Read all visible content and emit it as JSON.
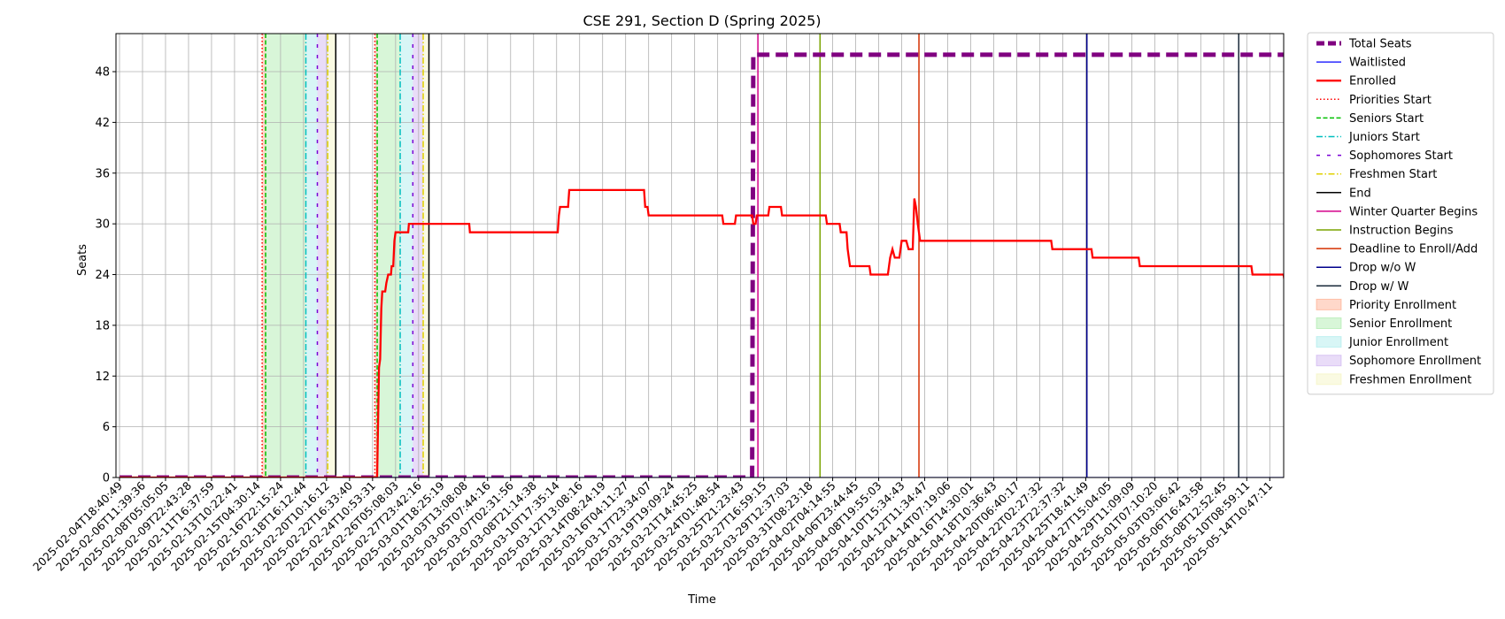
{
  "chart_data": {
    "type": "line",
    "title": "CSE 291, Section D (Spring 2025)",
    "xlabel": "Time",
    "ylabel": "Seats",
    "ylim": [
      0,
      52.5
    ],
    "yticks": [
      0,
      6,
      12,
      18,
      24,
      30,
      36,
      42,
      48
    ],
    "xlim": [
      "2025-02-04T18:40:49",
      "2025-05-15T12:00:00"
    ],
    "grid": true,
    "legend_position": "outside-right",
    "xticks": [
      "2025-02-04T18:40:49",
      "2025-02-06T11:39:36",
      "2025-02-08T05:05:05",
      "2025-02-09T22:43:28",
      "2025-02-11T16:37:59",
      "2025-02-13T10:22:41",
      "2025-02-15T04:30:14",
      "2025-02-16T22:15:24",
      "2025-02-18T16:12:44",
      "2025-02-20T10:16:12",
      "2025-02-22T16:33:40",
      "2025-02-24T10:53:31",
      "2025-02-26T05:08:03",
      "2025-02-27T23:42:16",
      "2025-03-01T18:25:19",
      "2025-03-03T13:08:08",
      "2025-03-05T07:44:16",
      "2025-03-07T02:31:56",
      "2025-03-08T21:14:38",
      "2025-03-10T17:35:14",
      "2025-03-12T13:08:16",
      "2025-03-14T08:24:19",
      "2025-03-16T04:11:27",
      "2025-03-17T23:34:07",
      "2025-03-19T19:09:24",
      "2025-03-21T14:45:25",
      "2025-03-24T01:48:54",
      "2025-03-25T21:23:43",
      "2025-03-27T16:59:15",
      "2025-03-29T12:37:03",
      "2025-03-31T08:23:18",
      "2025-04-02T04:14:55",
      "2025-04-06T23:44:45",
      "2025-04-08T19:55:03",
      "2025-04-10T15:34:43",
      "2025-04-12T11:34:47",
      "2025-04-14T07:19:06",
      "2025-04-16T14:30:01",
      "2025-04-18T10:36:43",
      "2025-04-20T06:40:17",
      "2025-04-22T02:27:32",
      "2025-04-23T22:37:32",
      "2025-04-25T18:41:49",
      "2025-04-27T15:04:05",
      "2025-04-29T11:09:09",
      "2025-05-01T07:10:20",
      "2025-05-03T03:06:42",
      "2025-05-06T16:43:58",
      "2025-05-08T12:52:45",
      "2025-05-10T08:59:11",
      "2025-05-14T10:47:11"
    ],
    "series": [
      {
        "name": "Total Seats",
        "color": "#800080",
        "style": "dashed-thick",
        "points": [
          [
            0,
            0
          ],
          [
            27.5,
            0
          ],
          [
            27.55,
            50
          ],
          [
            51,
            50
          ]
        ]
      },
      {
        "name": "Waitlisted",
        "color": "#0000ff",
        "style": "solid",
        "points": [
          [
            0,
            0
          ],
          [
            51,
            0
          ]
        ]
      },
      {
        "name": "Enrolled",
        "color": "#ff0000",
        "style": "solid-thick",
        "points": [
          [
            0,
            0
          ],
          [
            11.2,
            0
          ],
          [
            11.28,
            13
          ],
          [
            11.33,
            14
          ],
          [
            11.38,
            20
          ],
          [
            11.42,
            22
          ],
          [
            11.55,
            22
          ],
          [
            11.6,
            23
          ],
          [
            11.68,
            24
          ],
          [
            11.8,
            24
          ],
          [
            11.83,
            25
          ],
          [
            11.9,
            25
          ],
          [
            11.95,
            28
          ],
          [
            12.0,
            29
          ],
          [
            12.55,
            29
          ],
          [
            12.58,
            30
          ],
          [
            15.2,
            30
          ],
          [
            15.23,
            29
          ],
          [
            19.05,
            29
          ],
          [
            19.1,
            31
          ],
          [
            19.15,
            32
          ],
          [
            19.5,
            32
          ],
          [
            19.55,
            34
          ],
          [
            22.8,
            34
          ],
          [
            22.85,
            32
          ],
          [
            22.95,
            32
          ],
          [
            23.0,
            31
          ],
          [
            26.2,
            31
          ],
          [
            26.25,
            30
          ],
          [
            26.75,
            30
          ],
          [
            26.8,
            31
          ],
          [
            27.5,
            31
          ],
          [
            27.55,
            30
          ],
          [
            27.65,
            30
          ],
          [
            27.7,
            31
          ],
          [
            28.2,
            31
          ],
          [
            28.25,
            32
          ],
          [
            28.75,
            32
          ],
          [
            28.8,
            31
          ],
          [
            30.7,
            31
          ],
          [
            30.75,
            30
          ],
          [
            31.3,
            30
          ],
          [
            31.35,
            29
          ],
          [
            31.6,
            29
          ],
          [
            31.65,
            27
          ],
          [
            31.75,
            25
          ],
          [
            32.6,
            25
          ],
          [
            32.65,
            24
          ],
          [
            33.4,
            24
          ],
          [
            33.5,
            26
          ],
          [
            33.6,
            27
          ],
          [
            33.7,
            26
          ],
          [
            33.9,
            26
          ],
          [
            34.0,
            28
          ],
          [
            34.2,
            28
          ],
          [
            34.3,
            27
          ],
          [
            34.48,
            27
          ],
          [
            34.55,
            33
          ],
          [
            34.62,
            32
          ],
          [
            34.7,
            30
          ],
          [
            34.8,
            28
          ],
          [
            40.5,
            28
          ],
          [
            40.55,
            27
          ],
          [
            42.25,
            27
          ],
          [
            42.3,
            26
          ],
          [
            44.3,
            26
          ],
          [
            44.35,
            25
          ],
          [
            49.2,
            25
          ],
          [
            49.25,
            24
          ],
          [
            50.6,
            24
          ],
          [
            50.65,
            23
          ],
          [
            51,
            23
          ]
        ]
      }
    ],
    "markers": [
      {
        "name": "Priorities Start",
        "color": "#ff0000",
        "style": "dotted",
        "x": [
          6.2,
          11.1
        ]
      },
      {
        "name": "Seniors Start",
        "color": "#00c000",
        "style": "dashed",
        "x": [
          6.35,
          11.2
        ]
      },
      {
        "name": "Juniors Start",
        "color": "#00bfbf",
        "style": "dashdot",
        "x": [
          8.1,
          12.2
        ]
      },
      {
        "name": "Sophomores Start",
        "color": "#7b00d6",
        "style": "loosedash",
        "x": [
          8.6,
          12.75
        ]
      },
      {
        "name": "Freshmen Start",
        "color": "#e0d000",
        "style": "dashdot",
        "x": [
          9.05,
          13.2
        ]
      },
      {
        "name": "End",
        "color": "#000000",
        "style": "solid",
        "x": [
          9.4,
          13.45
        ]
      },
      {
        "name": "Winter Quarter Begins",
        "color": "#d4008a",
        "style": "solid",
        "x": [
          27.75
        ]
      },
      {
        "name": "Instruction Begins",
        "color": "#7aa300",
        "style": "solid",
        "x": [
          30.45
        ]
      },
      {
        "name": "Deadline to Enroll/Add",
        "color": "#d43000",
        "style": "solid",
        "x": [
          34.75
        ]
      },
      {
        "name": "Drop w/o W",
        "color": "#00008b",
        "style": "solid",
        "x": [
          42.05
        ]
      },
      {
        "name": "Drop w/ W",
        "color": "#1a2a3a",
        "style": "solid",
        "x": [
          48.65
        ]
      }
    ],
    "spans": [
      {
        "name": "Priority Enrollment",
        "color": "#ff7f50",
        "from": [
          6.2,
          11.1
        ],
        "to": [
          6.35,
          11.2
        ]
      },
      {
        "name": "Senior Enrollment",
        "color": "#7fe07f",
        "from": [
          6.35,
          11.2
        ],
        "to": [
          8.1,
          12.2
        ]
      },
      {
        "name": "Junior Enrollment",
        "color": "#7fe0e0",
        "from": [
          8.1,
          12.2
        ],
        "to": [
          8.6,
          12.75
        ]
      },
      {
        "name": "Sophomore Enrollment",
        "color": "#b58ae8",
        "from": [
          8.6,
          12.75
        ],
        "to": [
          9.05,
          13.2
        ]
      },
      {
        "name": "Freshmen Enrollment",
        "color": "#f0f0a0",
        "from": [
          9.05,
          13.2
        ],
        "to": [
          9.4,
          13.45
        ]
      }
    ]
  }
}
